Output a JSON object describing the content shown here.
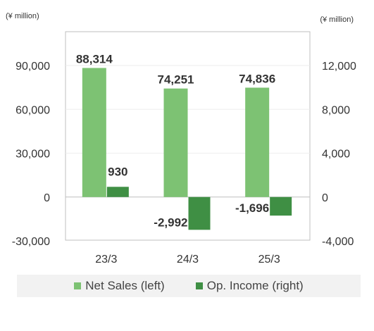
{
  "chart_data": {
    "type": "bar",
    "categories": [
      "23/3",
      "24/3",
      "25/3"
    ],
    "series": [
      {
        "name": "Net Sales (left)",
        "axis": "left",
        "values": [
          88314,
          74251,
          74836
        ],
        "labels": [
          "88,314",
          "74,251",
          "74,836"
        ],
        "color": "#7dc273"
      },
      {
        "name": "Op. Income (right)",
        "axis": "right",
        "values": [
          930,
          -2992,
          -1696
        ],
        "labels": [
          "930",
          "-2,992",
          "-1,696"
        ],
        "color": "#3f8f44"
      }
    ],
    "left_axis": {
      "unit": "(¥ million)",
      "ylim": [
        -30000,
        90000
      ],
      "ticks": [
        "90,000",
        "60,000",
        "30,000",
        "0",
        "-30,000"
      ]
    },
    "right_axis": {
      "unit": "(¥ million)",
      "ylim": [
        -4000,
        12000
      ],
      "ticks": [
        "12,000",
        "8,000",
        "4,000",
        "0",
        "-4,000"
      ]
    },
    "grid": true,
    "legend_position": "bottom"
  }
}
